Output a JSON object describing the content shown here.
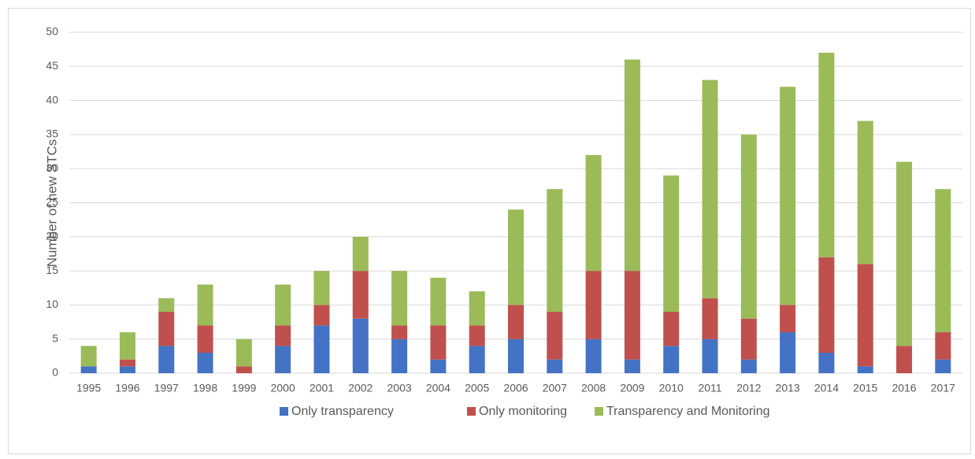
{
  "chart_data": {
    "type": "stacked_bar",
    "y_label": "Number of new STCs",
    "categories": [
      "1995",
      "1996",
      "1997",
      "1998",
      "1999",
      "2000",
      "2001",
      "2002",
      "2003",
      "2004",
      "2005",
      "2006",
      "2007",
      "2008",
      "2009",
      "2010",
      "2011",
      "2012",
      "2013",
      "2014",
      "2015",
      "2016",
      "2017"
    ],
    "series": [
      {
        "name": "Only transparency",
        "color": "#4472c4",
        "values": [
          1,
          1,
          4,
          3,
          0,
          4,
          7,
          8,
          5,
          2,
          4,
          5,
          2,
          5,
          2,
          4,
          5,
          2,
          6,
          3,
          1,
          0,
          2
        ]
      },
      {
        "name": "Only monitoring",
        "color": "#c0504d",
        "values": [
          0,
          1,
          5,
          4,
          1,
          3,
          3,
          7,
          2,
          5,
          3,
          5,
          7,
          10,
          13,
          5,
          6,
          6,
          4,
          14,
          15,
          4,
          4
        ]
      },
      {
        "name": "Transparency and Monitoring",
        "color": "#9bbb59",
        "values": [
          3,
          4,
          2,
          6,
          4,
          6,
          5,
          5,
          8,
          7,
          5,
          14,
          18,
          17,
          31,
          20,
          32,
          27,
          32,
          30,
          21,
          27,
          21
        ]
      }
    ],
    "ylim": [
      0,
      50
    ],
    "yticks": [
      0,
      5,
      10,
      15,
      20,
      25,
      30,
      35,
      40,
      45,
      50
    ],
    "grid": true,
    "legend": "bottom"
  }
}
